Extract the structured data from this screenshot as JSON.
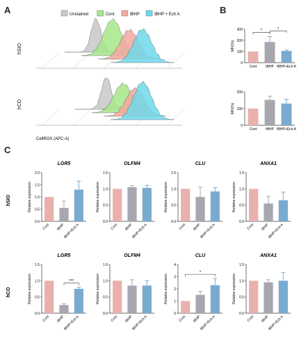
{
  "panel_letters": {
    "a": "A",
    "b": "B",
    "c": "C"
  },
  "flow": {
    "legend": [
      "Unstained",
      "Cont",
      "tBHP",
      "tBHP + Ech A"
    ],
    "row_labels": [
      "hSIO",
      "hCO"
    ],
    "xlabel": "CellROX (APC-A)"
  },
  "colors": {
    "Unstained": "#c8c8c8",
    "Cont": "#a6e88a",
    "tBHP": "#f2a8a0",
    "tBHP + Ech A": "#6fd8ea",
    "bar_cont": "#e9b0ac",
    "bar_tbhp": "#a8a6ae",
    "bar_ech": "#79abd0"
  },
  "chart_data": [
    {
      "type": "bar",
      "id": "B-hSIO",
      "categories": [
        "Cont",
        "tBHP",
        "tBHP+Ech A"
      ],
      "values": [
        100,
        185,
        105
      ],
      "errors": [
        0,
        50,
        8
      ],
      "ylabel": "MFI(%)",
      "ylim": [
        0,
        300
      ],
      "yticks": [
        0,
        100,
        200,
        300
      ],
      "sig": [
        {
          "from": 0,
          "to": 1,
          "label": "*"
        },
        {
          "from": 1,
          "to": 2,
          "label": "*"
        }
      ]
    },
    {
      "type": "bar",
      "id": "B-hCO",
      "categories": [
        "Cont",
        "tBHP",
        "tBHP+Ech A"
      ],
      "values": [
        100,
        152,
        130
      ],
      "errors": [
        0,
        22,
        25
      ],
      "ylabel": "MFI(%)",
      "ylim": [
        0,
        200
      ],
      "yticks": [
        0,
        100,
        200
      ],
      "sig": []
    },
    {
      "type": "bar",
      "id": "C-hSIO-LGR5",
      "title": "LGR5",
      "row": "hSIO",
      "categories": [
        "Cont",
        "tBHP",
        "tBHP+Ech A"
      ],
      "values": [
        1.0,
        0.55,
        1.3
      ],
      "errors": [
        0,
        0.28,
        0.35
      ],
      "ylabel": "Relative expression",
      "ylim": [
        0,
        2.0
      ],
      "yticks": [
        0.0,
        0.5,
        1.0,
        1.5,
        2.0
      ],
      "sig": []
    },
    {
      "type": "bar",
      "id": "C-hSIO-OLFM4",
      "title": "OLFM4",
      "row": "hSIO",
      "categories": [
        "Cont",
        "tBHP",
        "tBHP+Ech A"
      ],
      "values": [
        1.0,
        1.05,
        1.03
      ],
      "errors": [
        0,
        0.05,
        0.08
      ],
      "ylabel": "Relative expression",
      "ylim": [
        0,
        1.5
      ],
      "yticks": [
        0.0,
        0.5,
        1.0,
        1.5
      ],
      "sig": []
    },
    {
      "type": "bar",
      "id": "C-hSIO-CLU",
      "title": "CLU",
      "row": "hSIO",
      "categories": [
        "Cont",
        "tBHP",
        "tBHP+Ech A"
      ],
      "values": [
        1.0,
        0.75,
        0.92
      ],
      "errors": [
        0,
        0.3,
        0.12
      ],
      "ylabel": "Relative expression",
      "ylim": [
        0,
        1.5
      ],
      "yticks": [
        0.0,
        0.5,
        1.0,
        1.5
      ],
      "sig": []
    },
    {
      "type": "bar",
      "id": "C-hSIO-ANXA1",
      "title": "ANXA1",
      "row": "hSIO",
      "categories": [
        "Cont",
        "tBHP",
        "tBHP+Ech A"
      ],
      "values": [
        1.0,
        0.55,
        0.65
      ],
      "errors": [
        0,
        0.22,
        0.25
      ],
      "ylabel": "Relative expression",
      "ylim": [
        0,
        1.5
      ],
      "yticks": [
        0.0,
        0.5,
        1.0,
        1.5
      ],
      "sig": []
    },
    {
      "type": "bar",
      "id": "C-hCO-LGR5",
      "title": "LGR5",
      "row": "hCO",
      "categories": [
        "Cont",
        "tBHP",
        "tBHP+Ech A"
      ],
      "values": [
        1.0,
        0.25,
        0.75
      ],
      "errors": [
        0,
        0.04,
        0.05
      ],
      "ylabel": "Relative expression",
      "ylim": [
        0,
        1.5
      ],
      "yticks": [
        0.0,
        0.5,
        1.0,
        1.5
      ],
      "sig": [
        {
          "from": 1,
          "to": 2,
          "label": "***"
        }
      ]
    },
    {
      "type": "bar",
      "id": "C-hCO-OLFM4",
      "title": "OLFM4",
      "row": "hCO",
      "categories": [
        "Cont",
        "tBHP",
        "tBHP+Ech A"
      ],
      "values": [
        1.0,
        0.85,
        0.85
      ],
      "errors": [
        0,
        0.18,
        0.15
      ],
      "ylabel": "Relative expression",
      "ylim": [
        0,
        1.5
      ],
      "yticks": [
        0.0,
        0.5,
        1.0,
        1.5
      ],
      "sig": []
    },
    {
      "type": "bar",
      "id": "C-hCO-CLU",
      "title": "CLU",
      "row": "hCO",
      "categories": [
        "Cont",
        "tBHP",
        "tBHP+Ech A"
      ],
      "values": [
        1.0,
        1.5,
        2.3
      ],
      "errors": [
        0,
        0.3,
        0.55
      ],
      "ylabel": "Relative expression",
      "ylim": [
        0,
        4
      ],
      "yticks": [
        0,
        1,
        2,
        3,
        4
      ],
      "sig": [
        {
          "from": 0,
          "to": 2,
          "label": "*"
        }
      ]
    },
    {
      "type": "bar",
      "id": "C-hCO-ANXA1",
      "title": "ANXA1",
      "row": "hCO",
      "categories": [
        "Cont",
        "tBHP",
        "tBHP+Ech A"
      ],
      "values": [
        1.0,
        0.95,
        1.0
      ],
      "errors": [
        0,
        0.08,
        0.25
      ],
      "ylabel": "Relative expression",
      "ylim": [
        0,
        1.5
      ],
      "yticks": [
        0.0,
        0.5,
        1.0,
        1.5
      ],
      "sig": []
    }
  ]
}
